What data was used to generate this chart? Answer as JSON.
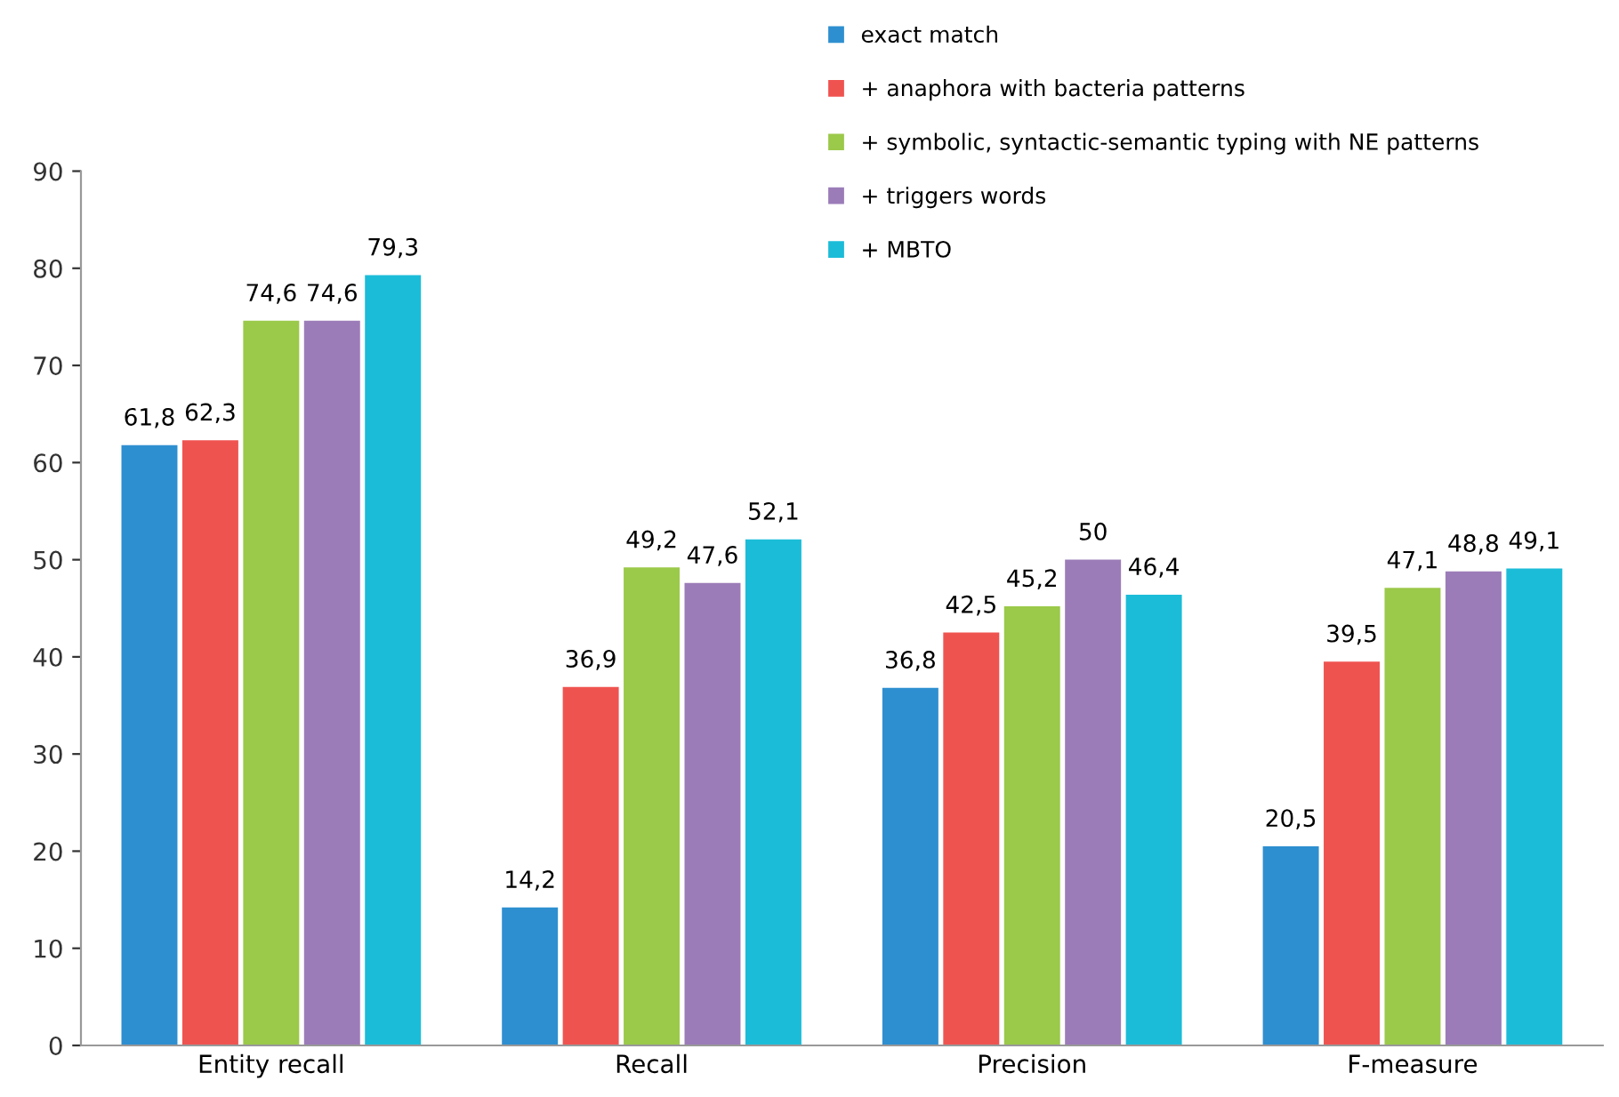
{
  "chart_data": {
    "type": "bar",
    "categories": [
      "Entity recall",
      "Recall",
      "Precision",
      "F-measure"
    ],
    "series": [
      {
        "name": "exact match",
        "color": "#2e8fd0",
        "values": [
          61.8,
          14.2,
          36.8,
          20.5
        ],
        "value_labels": [
          "61,8",
          "14,2",
          "36,8",
          "20,5"
        ]
      },
      {
        "name": "+ anaphora with bacteria patterns",
        "color": "#ef5350",
        "values": [
          62.3,
          36.9,
          42.5,
          39.5
        ],
        "value_labels": [
          "62,3",
          "36,9",
          "42,5",
          "39,5"
        ]
      },
      {
        "name": "+ symbolic, syntactic-semantic typing with NE patterns",
        "color": "#9bc94a",
        "values": [
          74.6,
          49.2,
          45.2,
          47.1
        ],
        "value_labels": [
          "74,6",
          "49,2",
          "45,2",
          "47,1"
        ]
      },
      {
        "name": "+ triggers words",
        "color": "#9b7cb8",
        "values": [
          74.6,
          47.6,
          50,
          48.8
        ],
        "value_labels": [
          "74,6",
          "47,6",
          "50",
          "48,8"
        ]
      },
      {
        "name": "+ MBTO",
        "color": "#1bbcd8",
        "values": [
          79.3,
          52.1,
          46.4,
          49.1
        ],
        "value_labels": [
          "79,3",
          "52,1",
          "46,4",
          "49,1"
        ]
      }
    ],
    "ylim": [
      0,
      90
    ],
    "yticks": [
      0,
      10,
      20,
      30,
      40,
      50,
      60,
      70,
      80,
      90
    ],
    "grid": false,
    "legend": "top"
  }
}
